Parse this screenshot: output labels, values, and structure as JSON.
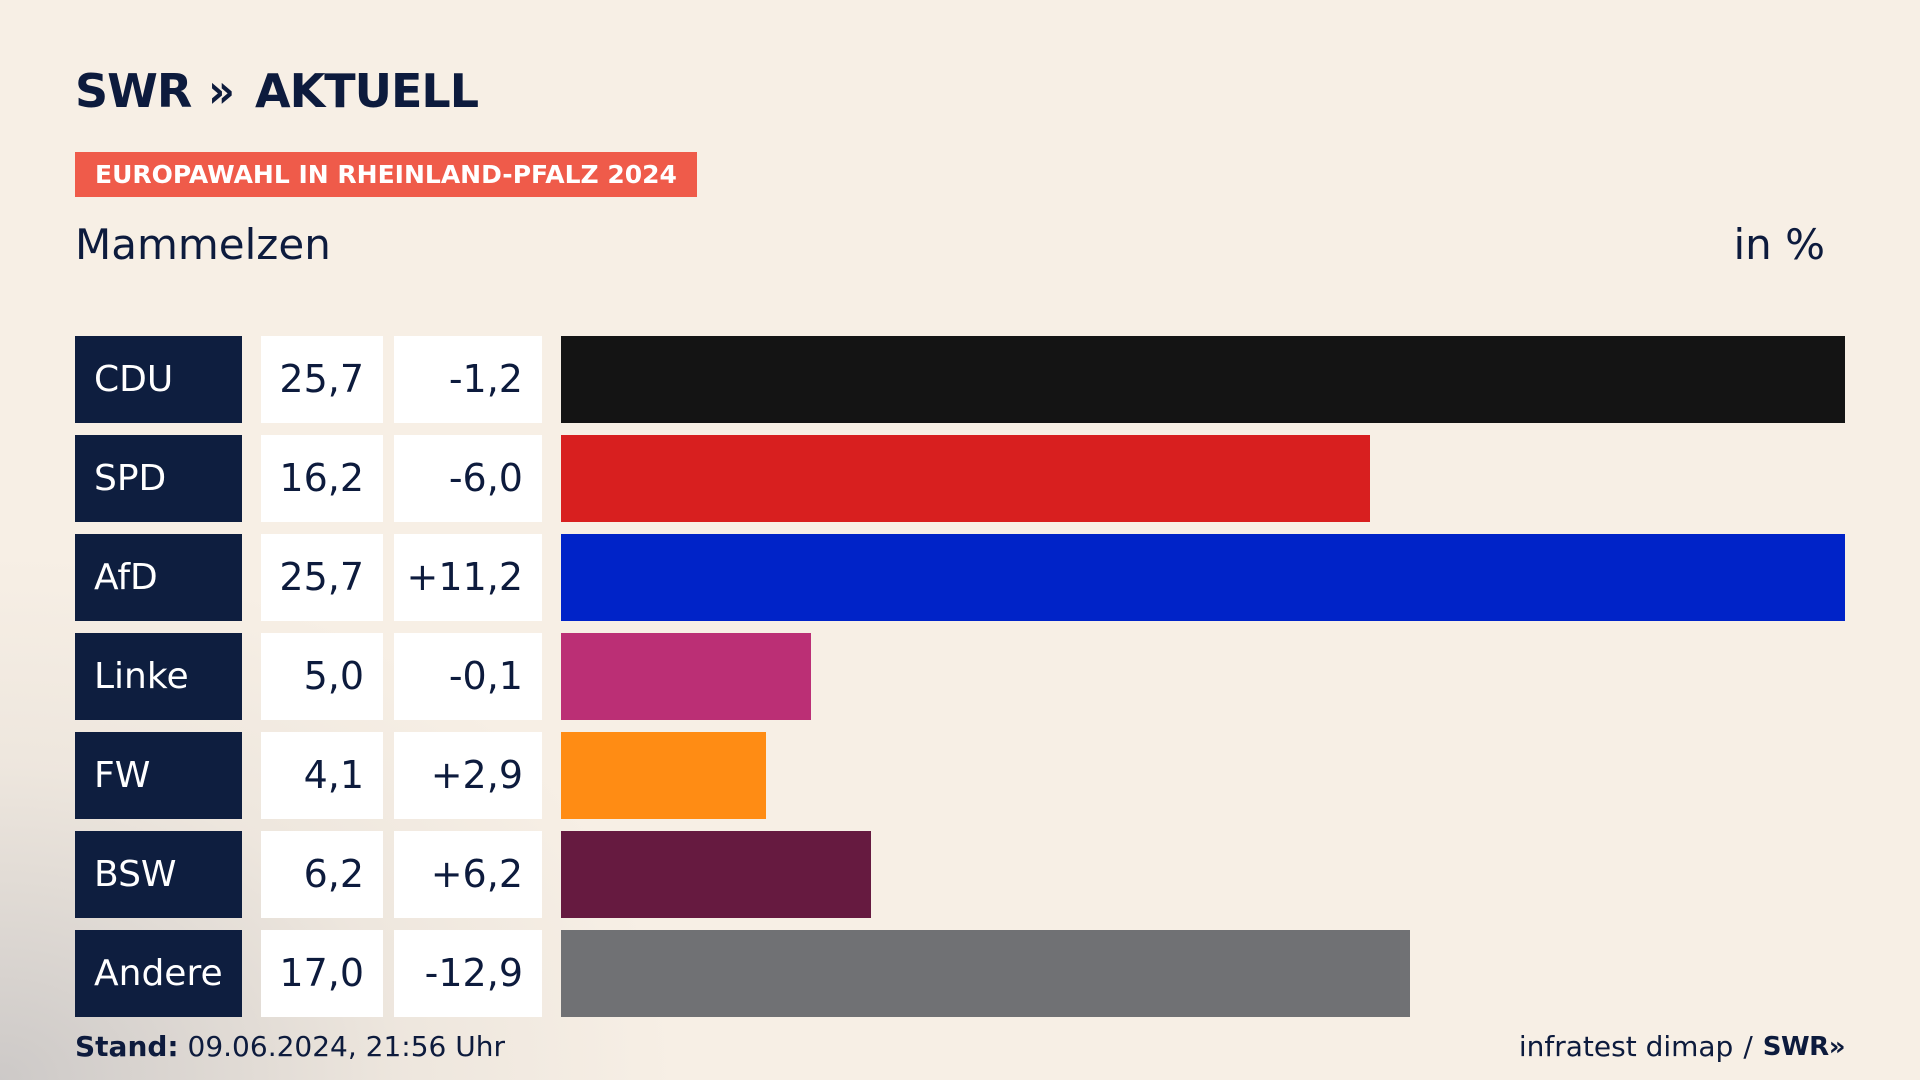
{
  "brand": {
    "name": "SWR",
    "chevrons": "»",
    "suffix": "AKTUELL"
  },
  "kicker": "EUROPAWAHL IN RHEINLAND-PFALZ 2024",
  "place": "Mammelzen",
  "unit": "in %",
  "footer": {
    "stand_label": "Stand:",
    "stand_value": "09.06.2024, 21:56 Uhr",
    "source": "infratest dimap",
    "separator": "/",
    "source_brand": "SWR»"
  },
  "chart_data": {
    "type": "bar",
    "orientation": "horizontal",
    "categories": [
      "CDU",
      "SPD",
      "AfD",
      "Linke",
      "FW",
      "BSW",
      "Andere"
    ],
    "values": [
      25.7,
      16.2,
      25.7,
      5.0,
      4.1,
      6.2,
      17.0
    ],
    "value_labels": [
      "25,7",
      "16,2",
      "25,7",
      "5,0",
      "4,1",
      "6,2",
      "17,0"
    ],
    "change_labels": [
      "-1,2",
      "-6,0",
      "+11,2",
      "-0,1",
      "+2,9",
      "+6,2",
      "-12,9"
    ],
    "colors": [
      "#141414",
      "#d81f1f",
      "#0023c8",
      "#bb2f75",
      "#ff8c14",
      "#661a40",
      "#707174"
    ],
    "xlim": [
      0,
      25.7
    ],
    "grid": false,
    "legend": "none"
  }
}
